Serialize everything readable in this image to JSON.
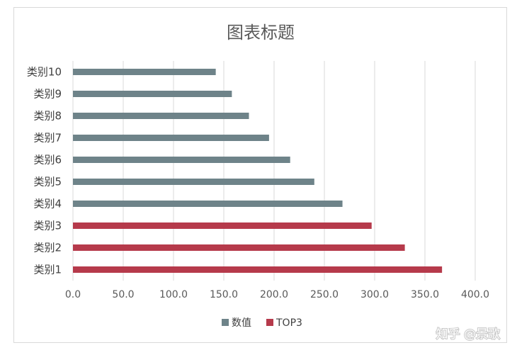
{
  "chart_data": {
    "type": "bar",
    "orientation": "horizontal",
    "title": "图表标题",
    "categories": [
      "类别1",
      "类别2",
      "类别3",
      "类别4",
      "类别5",
      "类别6",
      "类别7",
      "类别8",
      "类别9",
      "类别10"
    ],
    "values": [
      367,
      330,
      297,
      268,
      240,
      216,
      195,
      175,
      158,
      142
    ],
    "series": [
      {
        "name": "数值",
        "color": "#6e8389",
        "categories": [
          "类别4",
          "类别5",
          "类别6",
          "类别7",
          "类别8",
          "类别9",
          "类别10"
        ]
      },
      {
        "name": "TOP3",
        "color": "#b63a4b",
        "categories": [
          "类别1",
          "类别2",
          "类别3"
        ]
      }
    ],
    "xlim": [
      0,
      400
    ],
    "xticks": [
      "0.0",
      "50.0",
      "100.0",
      "150.0",
      "200.0",
      "250.0",
      "300.0",
      "350.0",
      "400.0"
    ],
    "grid": true,
    "legend": "bottom"
  },
  "watermark": "知乎 @景歌"
}
